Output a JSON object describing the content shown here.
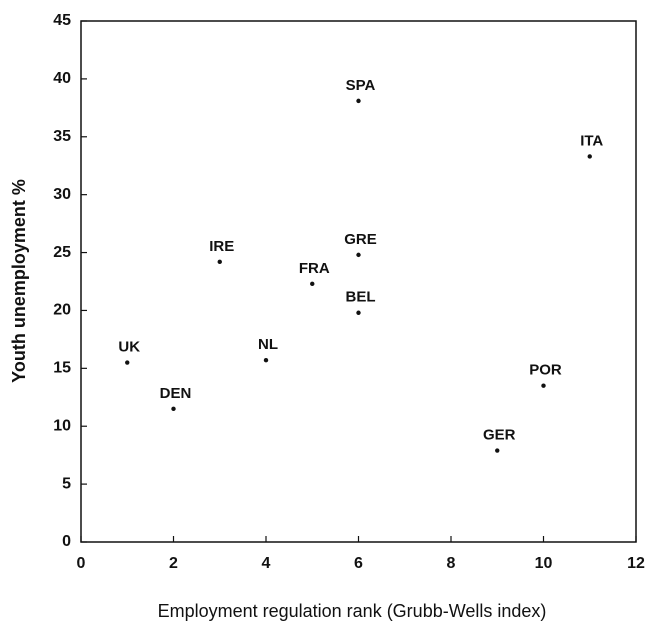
{
  "chart_data": {
    "type": "scatter",
    "x_label": "Employment regulation rank (Grubb-Wells index)",
    "y_label": "Youth unemployment %",
    "labels": [
      "UK",
      "DEN",
      "IRE",
      "NL",
      "FRA",
      "SPA",
      "GRE",
      "BEL",
      "GER",
      "POR",
      "ITA"
    ],
    "x": [
      1,
      2,
      3,
      4,
      5,
      6,
      6,
      6,
      9,
      10,
      11
    ],
    "values": [
      15.5,
      11.5,
      24.2,
      15.7,
      22.3,
      38.1,
      24.8,
      19.8,
      7.9,
      13.5,
      33.3
    ],
    "color": "#111111",
    "xlim": [
      0,
      12
    ],
    "xticks": [
      0,
      2,
      4,
      6,
      8,
      10,
      12
    ],
    "ylim": [
      0,
      45
    ],
    "yticks": [
      0,
      5,
      10,
      15,
      20,
      25,
      30,
      35,
      40,
      45
    ],
    "grid": false
  }
}
